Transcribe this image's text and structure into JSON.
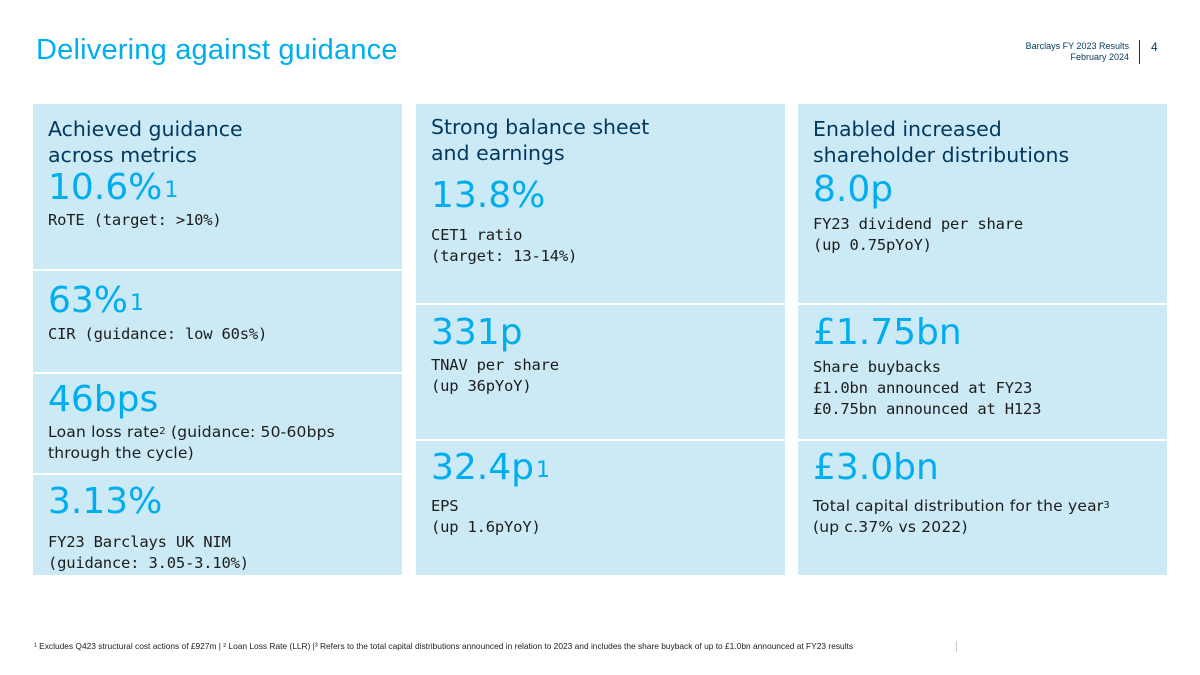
{
  "header": {
    "title": "Delivering against guidance",
    "meta_line1": "Barclays FY 2023 Results",
    "meta_line2": "February 2024",
    "page_number": "4"
  },
  "columns": [
    {
      "heading": [
        "Achieved guidance",
        "across metrics"
      ],
      "metrics": [
        {
          "value": "10.6%",
          "sup": "1",
          "desc": [
            "RoTE (target: >10%)"
          ]
        },
        {
          "value": "63%",
          "sup": "1",
          "desc": [
            "CIR (guidance: low 60s%)"
          ]
        },
        {
          "value": "46bps",
          "desc": [
            "Loan loss rate",
            "(guidance: 50-60bps",
            "through the cycle)"
          ],
          "desc_sup": "2"
        },
        {
          "value": "3.13%",
          "desc": [
            "FY23 Barclays UK NIM",
            "(guidance: 3.05-3.10%)"
          ]
        }
      ]
    },
    {
      "heading": [
        "Strong balance sheet",
        "and earnings"
      ],
      "metrics": [
        {
          "value": "13.8%",
          "desc": [
            "CET1 ratio",
            "(target: 13-14%)"
          ]
        },
        {
          "value": "331p",
          "desc": [
            "TNAV per share",
            "(up 36pYoY)"
          ]
        },
        {
          "value": "32.4p",
          "sup": "1",
          "desc": [
            "EPS",
            "(up 1.6pYoY)"
          ]
        }
      ]
    },
    {
      "heading": [
        "Enabled increased",
        "shareholder distributions"
      ],
      "metrics": [
        {
          "value": "8.0p",
          "desc": [
            "FY23 dividend per share",
            "(up 0.75pYoY)"
          ]
        },
        {
          "value": "£1.75bn",
          "desc": [
            "Share buybacks",
            "£1.0bn announced at FY23",
            "£0.75bn announced at H123"
          ]
        },
        {
          "value": "£3.0bn",
          "desc": [
            "Total capital distribution for the year",
            "(up c.37% vs 2022)"
          ],
          "desc_sup": "3"
        }
      ]
    }
  ],
  "footnote": "¹ Excludes Q423 structural cost actions of £927m | ² Loan Loss Rate (LLR) |³ Refers to the total capital distributions announced in relation to 2023 and includes the share buyback of up to £1.0bn announced at FY23 results",
  "colors": {
    "accent": "#00aeef",
    "navy": "#00395d",
    "panel": "#cce9f6"
  }
}
